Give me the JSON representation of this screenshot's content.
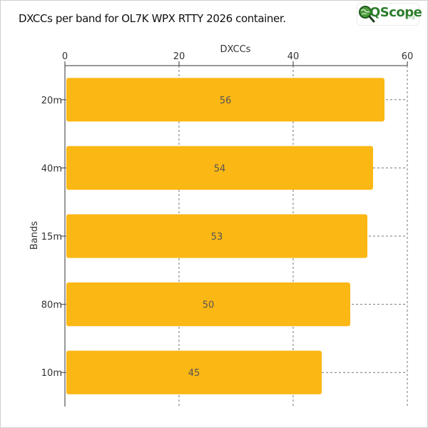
{
  "title": "DXCCs per band for OL7K WPX RTTY 2026 container.",
  "logo": {
    "name": "QScope",
    "suffix": ".org",
    "icon": "magnifier-globe-icon"
  },
  "chart_data": {
    "type": "bar",
    "orientation": "horizontal",
    "categories": [
      "20m",
      "40m",
      "15m",
      "80m",
      "10m"
    ],
    "values": [
      56,
      54,
      53,
      50,
      45
    ],
    "data_labels": [
      "56",
      "54",
      "53",
      "50",
      "45"
    ],
    "xlabel": "DXCCs",
    "ylabel": "Bands",
    "xlim": [
      0,
      60
    ],
    "xticks": [
      0,
      20,
      40,
      60
    ],
    "x_axis_position": "top",
    "grid": "vertical dashed",
    "legend": "none",
    "bar_color": "#fbb714",
    "grid_color": "#777777"
  }
}
